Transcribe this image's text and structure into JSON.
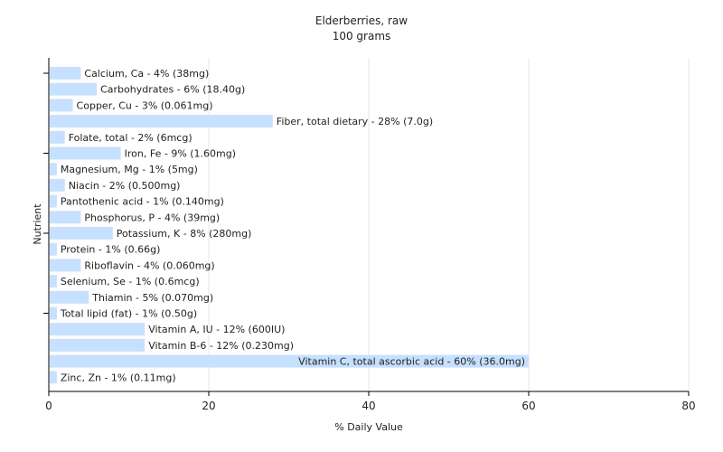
{
  "chart_data": {
    "type": "bar",
    "orientation": "horizontal",
    "title": "Elderberries, raw",
    "subtitle": "100 grams",
    "xlabel": "% Daily Value",
    "ylabel": "Nutrient",
    "xlim": [
      0,
      80
    ],
    "x_ticks": [
      0,
      20,
      40,
      60,
      80
    ],
    "grid": true,
    "bar_color": "#c6e0ff",
    "categories": [
      "Calcium, Ca",
      "Carbohydrates",
      "Copper, Cu",
      "Fiber, total dietary",
      "Folate, total",
      "Iron, Fe",
      "Magnesium, Mg",
      "Niacin",
      "Pantothenic acid",
      "Phosphorus, P",
      "Potassium, K",
      "Protein",
      "Riboflavin",
      "Selenium, Se",
      "Thiamin",
      "Total lipid (fat)",
      "Vitamin A, IU",
      "Vitamin B-6",
      "Vitamin C, total ascorbic acid",
      "Zinc, Zn"
    ],
    "values": [
      4,
      6,
      3,
      28,
      2,
      9,
      1,
      2,
      1,
      4,
      8,
      1,
      4,
      1,
      5,
      1,
      12,
      12,
      60,
      1
    ],
    "labels": [
      "Calcium, Ca - 4% (38mg)",
      "Carbohydrates - 6% (18.40g)",
      "Copper, Cu - 3% (0.061mg)",
      "Fiber, total dietary - 28% (7.0g)",
      "Folate, total - 2% (6mcg)",
      "Iron, Fe - 9% (1.60mg)",
      "Magnesium, Mg - 1% (5mg)",
      "Niacin - 2% (0.500mg)",
      "Pantothenic acid - 1% (0.140mg)",
      "Phosphorus, P - 4% (39mg)",
      "Potassium, K - 8% (280mg)",
      "Protein - 1% (0.66g)",
      "Riboflavin - 4% (0.060mg)",
      "Selenium, Se - 1% (0.6mcg)",
      "Thiamin - 5% (0.070mg)",
      "Total lipid (fat) - 1% (0.50g)",
      "Vitamin A, IU - 12% (600IU)",
      "Vitamin B-6 - 12% (0.230mg)",
      "Vitamin C, total ascorbic acid - 60% (36.0mg)",
      "Zinc, Zn - 1% (0.11mg)"
    ]
  }
}
